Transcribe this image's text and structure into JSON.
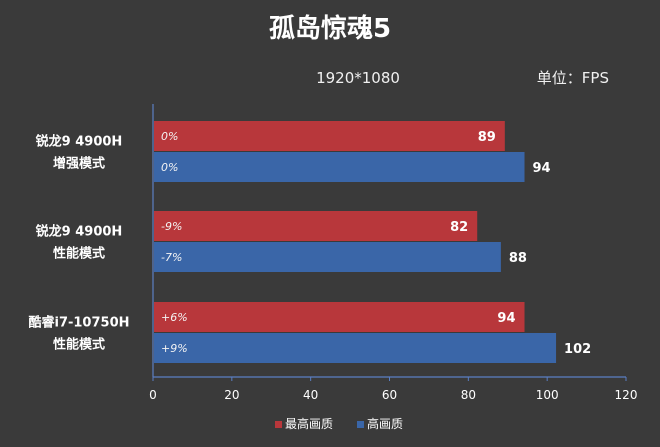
{
  "chart_data": {
    "type": "bar",
    "orientation": "horizontal",
    "title": "孤岛惊魂5",
    "subtitle_left": "1920*1080",
    "subtitle_right": "单位：FPS",
    "categories": [
      [
        "锐龙9 4900H",
        "增强模式"
      ],
      [
        "锐龙9 4900H",
        "性能模式"
      ],
      [
        "酷睿i7-10750H",
        "性能模式"
      ]
    ],
    "series": [
      {
        "name": "最高画质",
        "color": "#b8373b",
        "values": [
          89,
          82,
          94
        ],
        "annotations": [
          "0%",
          "-9%",
          "+6%"
        ]
      },
      {
        "name": "高画质",
        "color": "#3a66a8",
        "values": [
          94,
          88,
          102
        ],
        "annotations": [
          "0%",
          "-7%",
          "+9%"
        ]
      }
    ],
    "xlim": [
      0,
      120
    ],
    "xticks": [
      0,
      20,
      40,
      60,
      80,
      100,
      120
    ],
    "grid": false,
    "legend_position": "bottom-center"
  }
}
